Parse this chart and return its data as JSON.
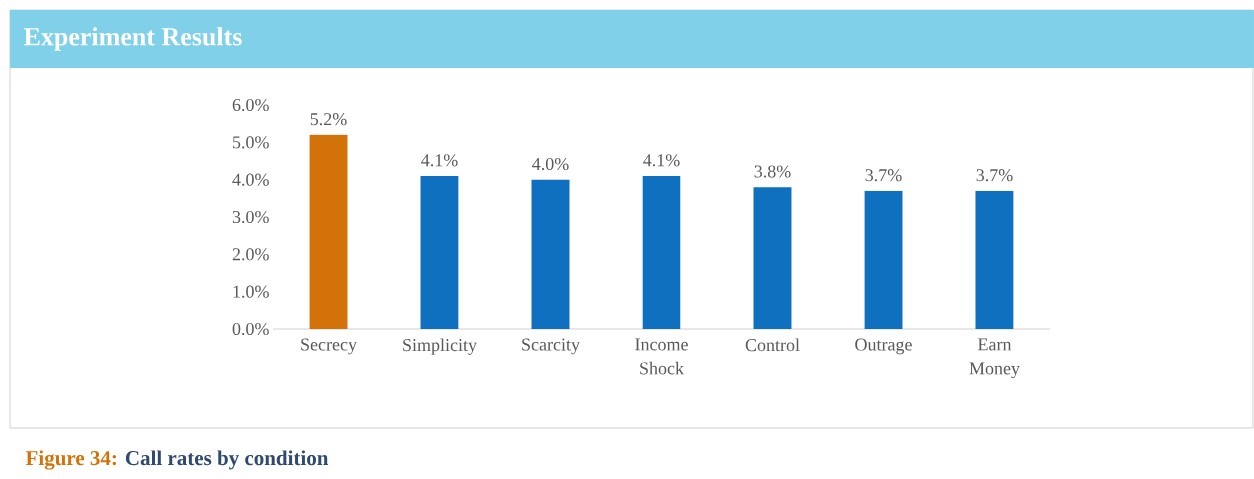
{
  "chart_data": {
    "type": "bar",
    "title": "Experiment Results",
    "categories": [
      "Secrecy",
      "Simplicity",
      "Scarcity",
      "Income Shock",
      "Control",
      "Outrage",
      "Earn Money"
    ],
    "values": [
      5.2,
      4.1,
      4.0,
      4.1,
      3.8,
      3.7,
      3.7
    ],
    "colors": [
      "#d4720a",
      "#1070c0",
      "#1070c0",
      "#1070c0",
      "#1070c0",
      "#1070c0",
      "#1070c0"
    ],
    "value_labels": [
      "5.2%",
      "4.1%",
      "4.0%",
      "4.1%",
      "3.8%",
      "3.7%",
      "3.7%"
    ],
    "ylim": [
      0,
      6
    ],
    "yticks": [
      {
        "value": 0,
        "label": "0.0%"
      },
      {
        "value": 1,
        "label": "1.0%"
      },
      {
        "value": 2,
        "label": "2.0%"
      },
      {
        "value": 3,
        "label": "3.0%"
      },
      {
        "value": 4,
        "label": "4.0%"
      },
      {
        "value": 5,
        "label": "5.0%"
      },
      {
        "value": 6,
        "label": "6.0%"
      }
    ],
    "annotations": [
      "Figure 34:",
      "Call rates by condition"
    ]
  }
}
